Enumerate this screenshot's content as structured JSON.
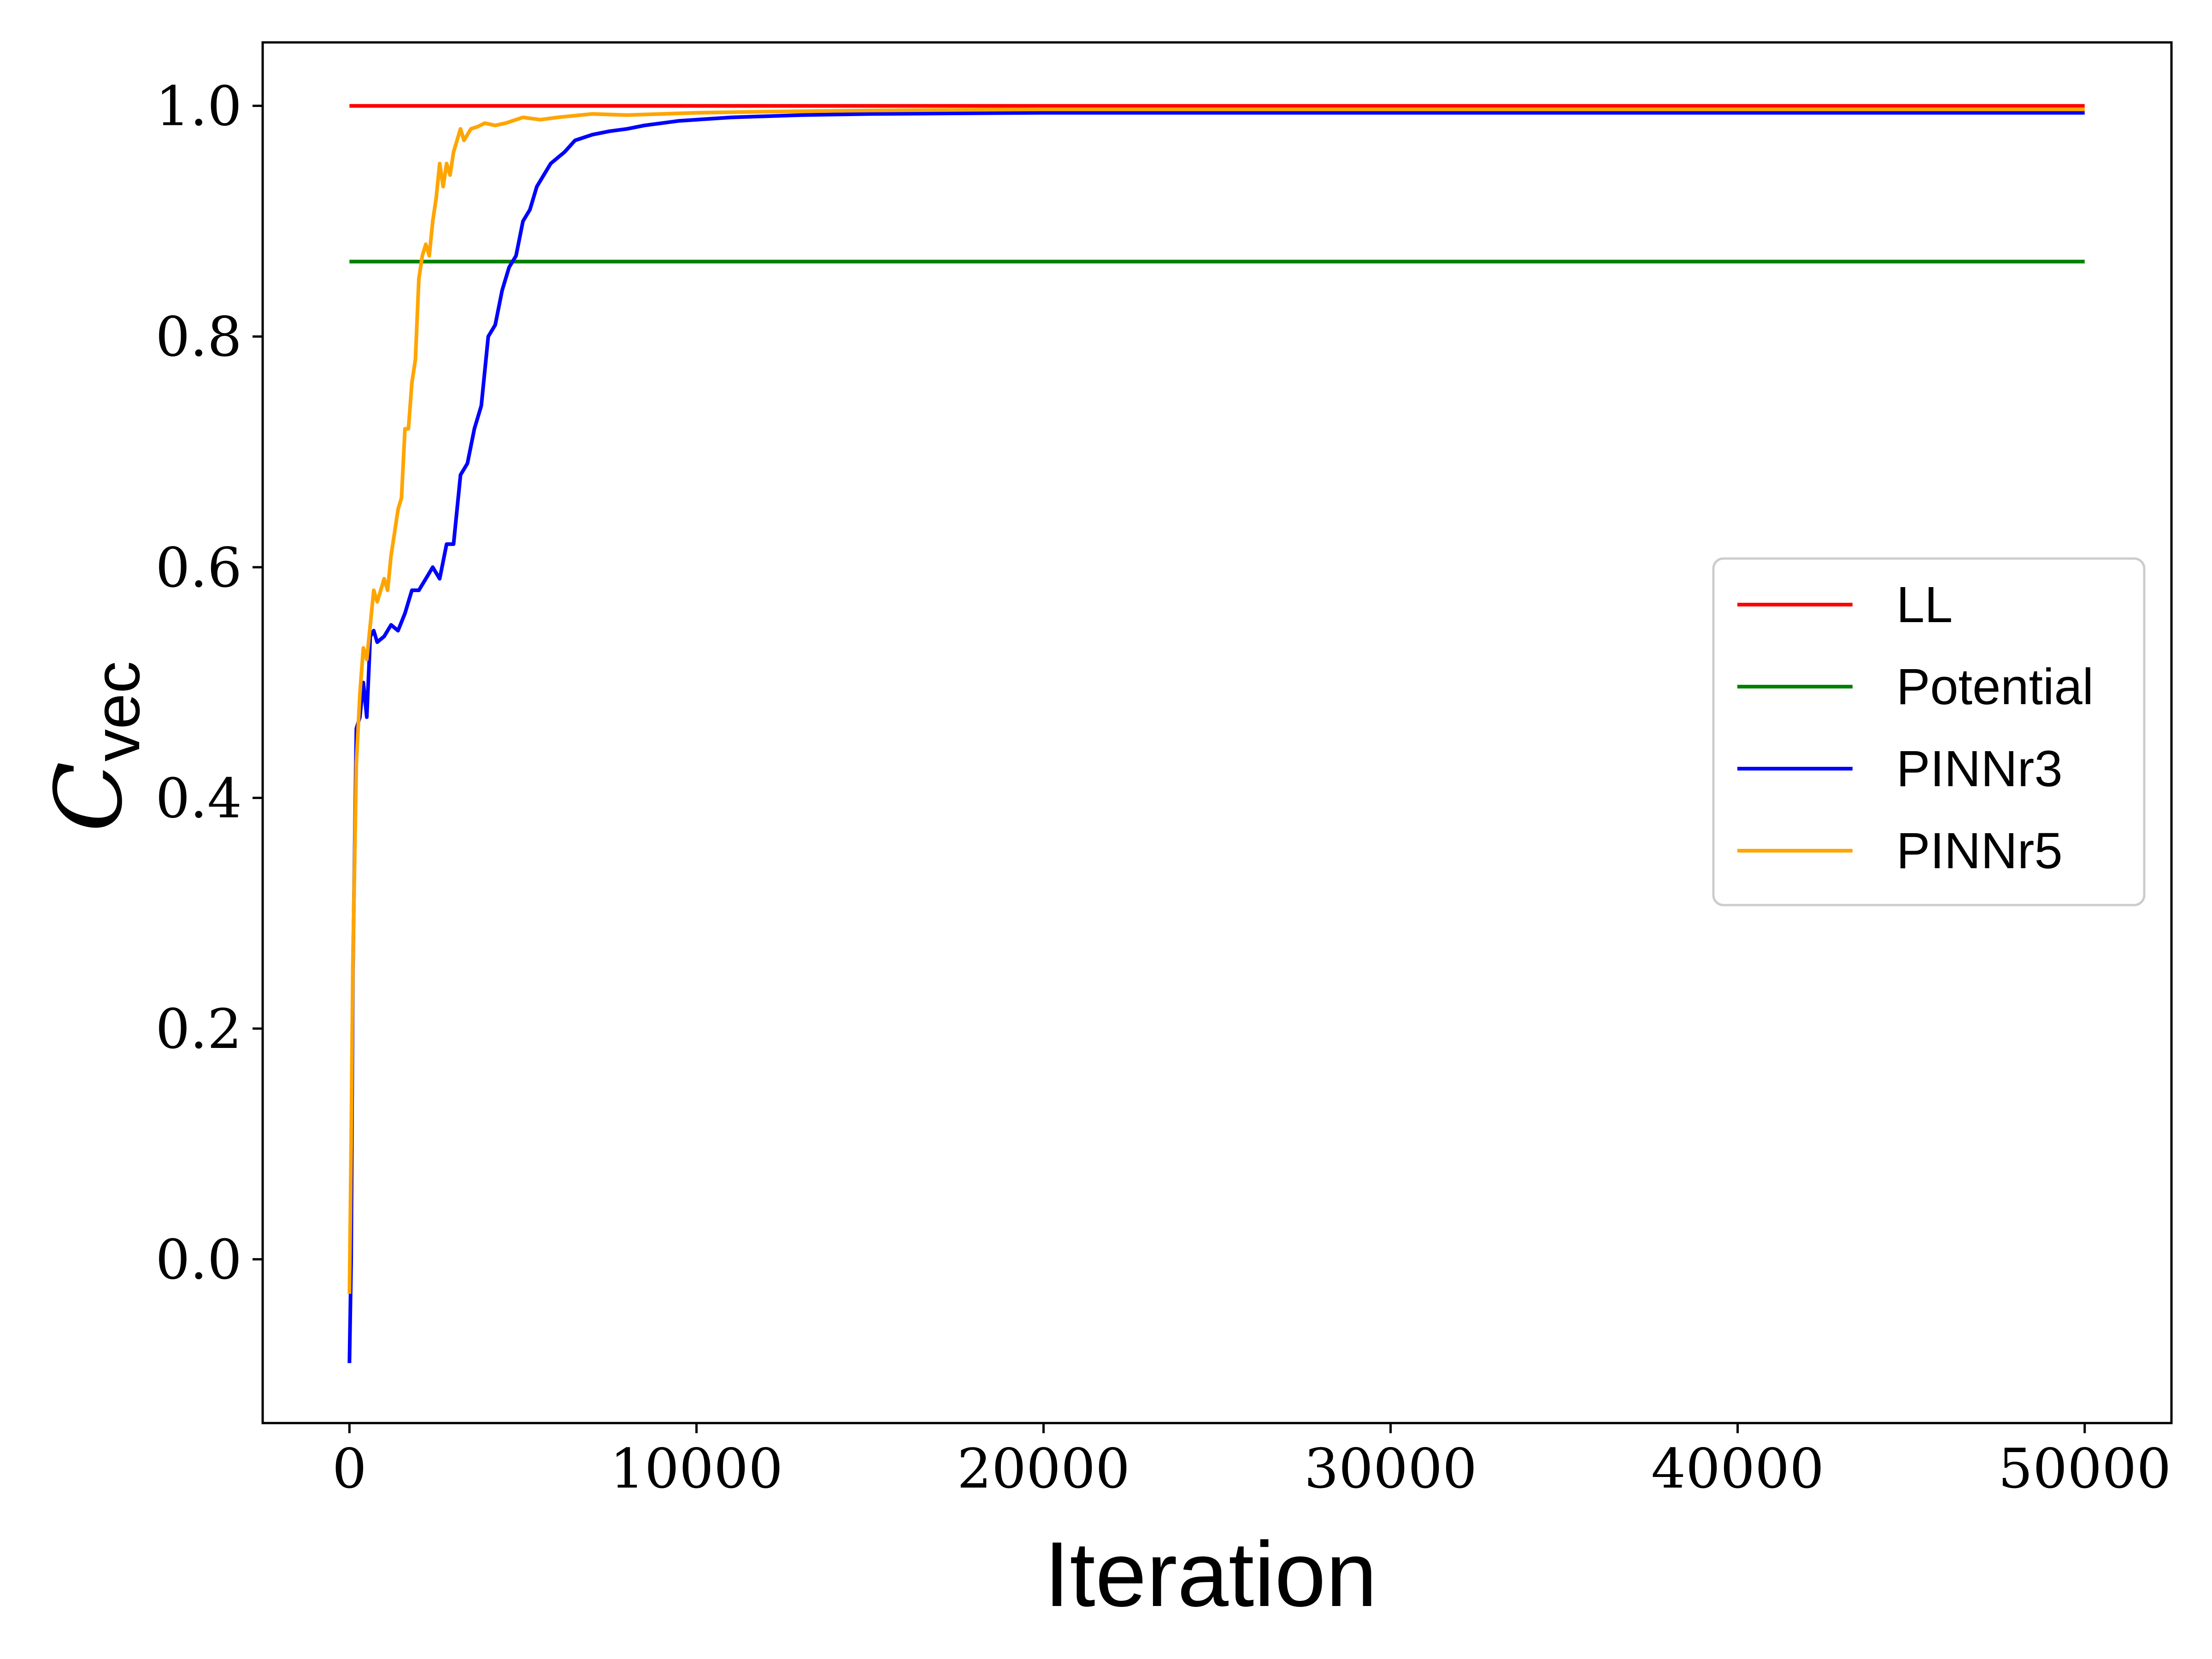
{
  "chart_data": {
    "type": "line",
    "xlabel": "Iteration",
    "ylabel": {
      "main": "C",
      "sub": "vec"
    },
    "xlim": [
      -2500,
      52500
    ],
    "ylim": [
      -0.142,
      1.055
    ],
    "xticks": [
      0,
      10000,
      20000,
      30000,
      40000,
      50000
    ],
    "xtick_labels": [
      "0",
      "10000",
      "20000",
      "30000",
      "40000",
      "50000"
    ],
    "yticks": [
      0.0,
      0.2,
      0.4,
      0.6,
      0.8,
      1.0
    ],
    "ytick_labels": [
      "0.0",
      "0.2",
      "0.4",
      "0.6",
      "0.8",
      "1.0"
    ],
    "grid": false,
    "legend_position": "center-right",
    "series": [
      {
        "name": "LL",
        "color": "#ff0000",
        "x": [
          0,
          50000
        ],
        "y": [
          1.0,
          1.0
        ]
      },
      {
        "name": "Potential",
        "color": "#008000",
        "x": [
          0,
          50000
        ],
        "y": [
          0.865,
          0.865
        ]
      },
      {
        "name": "PINNr3",
        "color": "#0000ff",
        "x": [
          0,
          50,
          100,
          200,
          300,
          400,
          500,
          600,
          700,
          800,
          1000,
          1200,
          1400,
          1600,
          1800,
          2000,
          2200,
          2400,
          2600,
          2800,
          3000,
          3200,
          3400,
          3600,
          3800,
          4000,
          4200,
          4400,
          4600,
          4800,
          5000,
          5200,
          5400,
          5600,
          5800,
          6000,
          6200,
          6500,
          7000,
          7500,
          8000,
          8500,
          9000,
          9500,
          10000,
          11000,
          12000,
          13000,
          15000,
          20000,
          25000,
          30000,
          35000,
          40000,
          45000,
          50000
        ],
        "y": [
          -0.09,
          0.0,
          0.25,
          0.46,
          0.47,
          0.5,
          0.47,
          0.54,
          0.545,
          0.535,
          0.54,
          0.55,
          0.545,
          0.56,
          0.58,
          0.58,
          0.59,
          0.6,
          0.59,
          0.62,
          0.62,
          0.68,
          0.69,
          0.72,
          0.74,
          0.8,
          0.81,
          0.84,
          0.86,
          0.87,
          0.9,
          0.91,
          0.93,
          0.94,
          0.95,
          0.955,
          0.96,
          0.97,
          0.975,
          0.978,
          0.98,
          0.983,
          0.985,
          0.987,
          0.988,
          0.99,
          0.991,
          0.992,
          0.993,
          0.994,
          0.994,
          0.994,
          0.994,
          0.994,
          0.994,
          0.994
        ]
      },
      {
        "name": "PINNr5",
        "color": "#ffa500",
        "x": [
          0,
          50,
          100,
          200,
          300,
          400,
          500,
          600,
          700,
          800,
          900,
          1000,
          1100,
          1200,
          1300,
          1400,
          1500,
          1600,
          1700,
          1800,
          1900,
          2000,
          2100,
          2200,
          2300,
          2400,
          2500,
          2600,
          2700,
          2800,
          2900,
          3000,
          3100,
          3200,
          3300,
          3400,
          3500,
          3700,
          3900,
          4200,
          4500,
          5000,
          5500,
          6000,
          7000,
          8000,
          9000,
          10000,
          12000,
          15000,
          20000,
          25000,
          30000,
          35000,
          40000,
          45000,
          50000
        ],
        "y": [
          -0.03,
          0.1,
          0.26,
          0.43,
          0.49,
          0.53,
          0.52,
          0.55,
          0.58,
          0.57,
          0.58,
          0.59,
          0.58,
          0.61,
          0.63,
          0.65,
          0.66,
          0.72,
          0.72,
          0.76,
          0.78,
          0.85,
          0.87,
          0.88,
          0.87,
          0.9,
          0.92,
          0.95,
          0.93,
          0.95,
          0.94,
          0.96,
          0.97,
          0.98,
          0.97,
          0.975,
          0.98,
          0.982,
          0.985,
          0.983,
          0.985,
          0.99,
          0.988,
          0.99,
          0.993,
          0.992,
          0.993,
          0.994,
          0.995,
          0.996,
          0.997,
          0.997,
          0.997,
          0.997,
          0.997,
          0.997,
          0.997
        ]
      }
    ]
  }
}
